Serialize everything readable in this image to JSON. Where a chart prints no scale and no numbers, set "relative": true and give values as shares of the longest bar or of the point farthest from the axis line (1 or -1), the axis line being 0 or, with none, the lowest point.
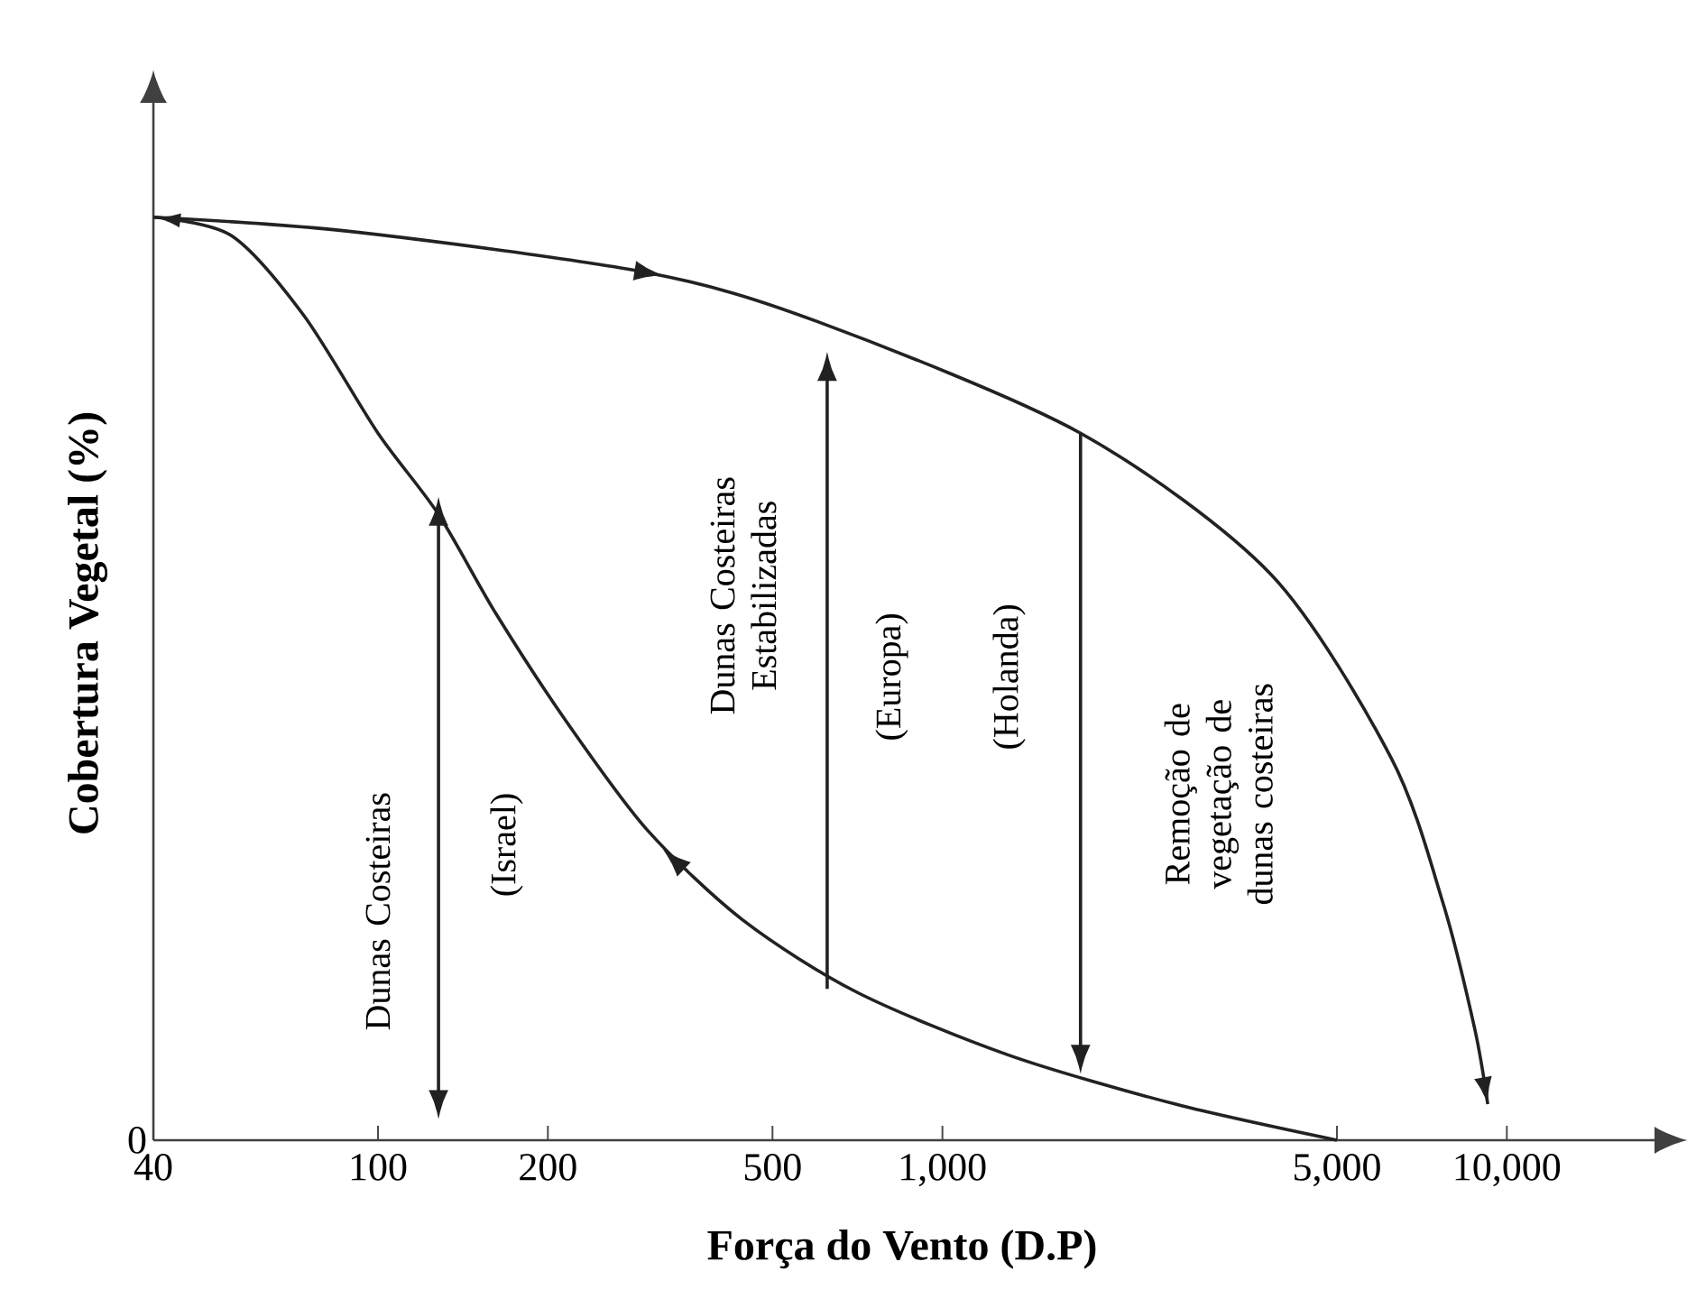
{
  "chart_data": {
    "type": "line",
    "relative": true,
    "log": "x",
    "xlabel": "Força do Vento (D.P)",
    "ylabel": "Cobertura Vegetal (%)",
    "xlim": [
      40,
      18000
    ],
    "xticks": [
      40,
      100,
      200,
      500,
      {
        "value": 1000,
        "label": "1,000"
      },
      {
        "value": 5000,
        "label": "5,000"
      },
      {
        "value": 10000,
        "label": "10,000"
      }
    ],
    "grid": false,
    "marker": "none",
    "line_style": "solid",
    "series": [
      {
        "color": "#222222",
        "x": [
          40,
          91,
          300,
          600,
          1757,
          3820,
          6240,
          7700,
          8770,
          9250
        ],
        "values": [
          1.0,
          0.984,
          0.94,
          0.887,
          0.766,
          0.613,
          0.414,
          0.258,
          0.121,
          0.039
        ]
      },
      {
        "color": "#222222",
        "x": [
          5000,
          2590,
          1313,
          707,
          444,
          300,
          216,
          162,
          128,
          100,
          74,
          55,
          40
        ],
        "values": [
          0.0,
          0.039,
          0.092,
          0.16,
          0.238,
          0.336,
          0.453,
          0.57,
          0.678,
          0.766,
          0.893,
          0.98,
          1.0
        ]
      }
    ],
    "annotations": [
      "0",
      "Dunas Costeiras",
      "(Israel)",
      "Dunas Costeiras Estabilizadas",
      "(Europa)",
      "(Holanda)",
      "Remoção de vegetação de dunas costeiras"
    ]
  }
}
